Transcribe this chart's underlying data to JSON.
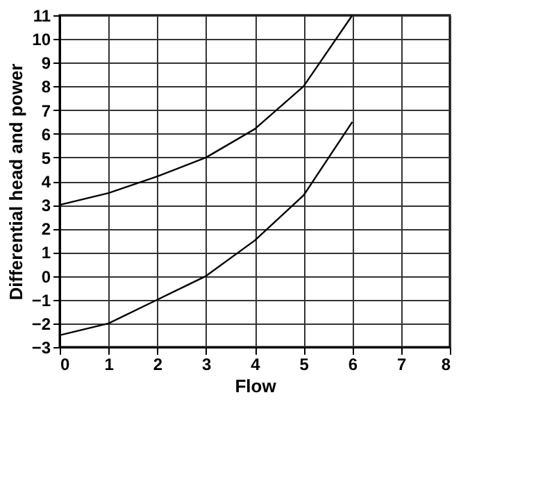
{
  "chart_data": {
    "type": "line",
    "xlabel": "Flow",
    "ylabel": "Differential head and power",
    "x": [
      0,
      1,
      2,
      3,
      4,
      5,
      6
    ],
    "series": [
      {
        "color": "#000000",
        "values": [
          3,
          3.5,
          4.2,
          5,
          6.2,
          8,
          11
        ]
      },
      {
        "color": "#000000",
        "values": [
          -2.5,
          -2,
          -1,
          0,
          1.5,
          3.4,
          6.5
        ]
      }
    ],
    "xlim": [
      0,
      8
    ],
    "xticks": [
      0,
      1,
      2,
      3,
      4,
      5,
      6,
      7,
      8
    ],
    "ylim": [
      -3,
      11
    ],
    "yticks": [
      -3,
      -2,
      -1,
      0,
      1,
      2,
      3,
      4,
      5,
      6,
      7,
      8,
      9,
      10,
      11
    ],
    "grid": true,
    "legend": false,
    "marker": "none",
    "line_style": "solid"
  }
}
